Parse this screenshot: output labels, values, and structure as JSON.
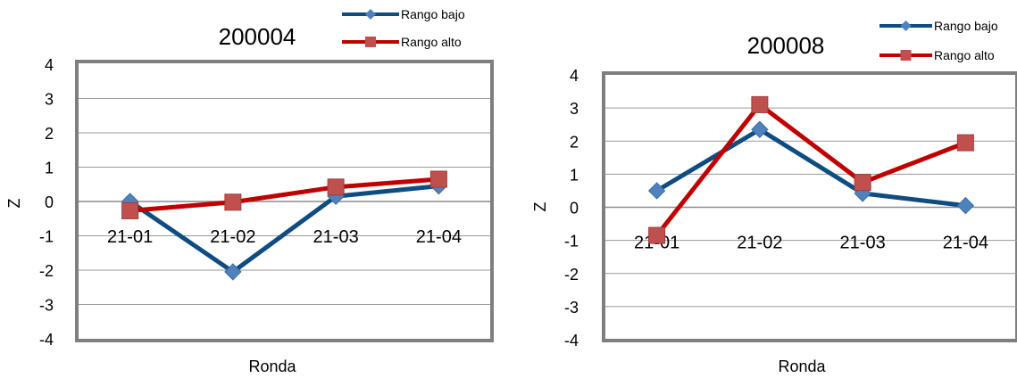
{
  "chart_data": [
    {
      "type": "line",
      "title": "200004",
      "xlabel": "Ronda",
      "ylabel": "Z",
      "categories": [
        "21-01",
        "21-02",
        "21-03",
        "21-04"
      ],
      "ylim": [
        -4,
        4
      ],
      "yticks": [
        "4",
        "3",
        "2",
        "1",
        "0",
        "-1",
        "-2",
        "-3",
        "-4"
      ],
      "grid": true,
      "legend_position": "top-right",
      "series": [
        {
          "name": "Rango bajo",
          "values": [
            0.0,
            -2.05,
            0.15,
            0.45
          ],
          "line_color": "#0f4c81",
          "marker": "diamond",
          "marker_color": "#4f81bd"
        },
        {
          "name": "Rango alto",
          "values": [
            -0.27,
            -0.02,
            0.42,
            0.65
          ],
          "line_color": "#c00000",
          "marker": "square",
          "marker_color": "#c0504d"
        }
      ]
    },
    {
      "type": "line",
      "title": "200008",
      "xlabel": "Ronda",
      "ylabel": "Z",
      "categories": [
        "21-01",
        "21-02",
        "21-03",
        "21-04"
      ],
      "ylim": [
        -4,
        4
      ],
      "yticks": [
        "4",
        "3",
        "2",
        "1",
        "0",
        "-1",
        "-2",
        "-3",
        "-4"
      ],
      "grid": true,
      "legend_position": "top-right",
      "series": [
        {
          "name": "Rango bajo",
          "values": [
            0.5,
            2.35,
            0.42,
            0.05
          ],
          "line_color": "#0f4c81",
          "marker": "diamond",
          "marker_color": "#4f81bd"
        },
        {
          "name": "Rango alto",
          "values": [
            -0.85,
            3.1,
            0.75,
            1.95
          ],
          "line_color": "#c00000",
          "marker": "square",
          "marker_color": "#c0504d"
        }
      ]
    }
  ]
}
